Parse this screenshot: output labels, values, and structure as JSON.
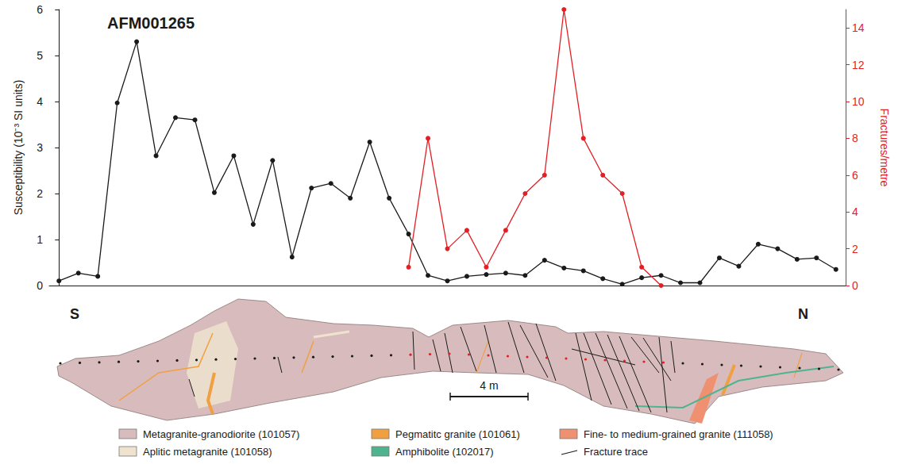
{
  "chart_data": {
    "type": "line",
    "title": "AFM001265",
    "y_label": "Susceptibility (10⁻³ SI units)",
    "y2_label": "Fractures/metre",
    "x": [
      0,
      1,
      2,
      3,
      4,
      5,
      6,
      7,
      8,
      9,
      10,
      11,
      12,
      13,
      14,
      15,
      16,
      17,
      18,
      19,
      20,
      21,
      22,
      23,
      24,
      25,
      26,
      27,
      28,
      29,
      30,
      31,
      32,
      33,
      34,
      35,
      36,
      37,
      38,
      39,
      40
    ],
    "xlim": [
      -0.5,
      40.5
    ],
    "ylim": [
      0,
      6
    ],
    "yticks": [
      0,
      1,
      2,
      3,
      4,
      5,
      6
    ],
    "y2lim": [
      0,
      15
    ],
    "y2ticks": [
      0,
      2,
      4,
      6,
      8,
      10,
      12,
      14
    ],
    "grid": false,
    "tick_labels": "y",
    "marker": "circle",
    "series": [
      {
        "color": "#1a1a1a",
        "values": [
          0.1,
          0.27,
          0.2,
          3.97,
          5.3,
          2.82,
          3.65,
          3.6,
          2.02,
          2.82,
          1.33,
          2.72,
          0.62,
          2.12,
          2.22,
          1.9,
          3.12,
          1.9,
          1.12,
          0.22,
          0.1,
          0.2,
          0.24,
          0.27,
          0.22,
          0.55,
          0.38,
          0.32,
          0.15,
          0.03,
          0.17,
          0.22,
          0.06,
          0.06,
          0.6,
          0.42,
          0.9,
          0.8,
          0.57,
          0.6,
          0.35
        ]
      },
      {
        "color": "#e31e24",
        "axis": "y2",
        "values": [
          null,
          null,
          null,
          null,
          null,
          null,
          null,
          null,
          null,
          null,
          null,
          null,
          null,
          null,
          null,
          null,
          null,
          null,
          1,
          8,
          2,
          3,
          1,
          3,
          5,
          6,
          15,
          8,
          6,
          5,
          1,
          0,
          null,
          null,
          null,
          null,
          null,
          null,
          null,
          null,
          null
        ]
      }
    ]
  },
  "outcrop": {
    "south": "S",
    "north": "N",
    "scale_bar": "4 m",
    "legend": [
      {
        "label": "Metagranite-granodiorite (101057)",
        "color": "#d8bcbd"
      },
      {
        "label": "Pegmatitc granite (101061)",
        "color": "#f0a040"
      },
      {
        "label": "Fine- to medium-grained granite (111058)",
        "color": "#ef9170"
      },
      {
        "label": "Aplitic metagranite (101058)",
        "color": "#efe3cf"
      },
      {
        "label": "Amphibolite (102017)",
        "color": "#4fb38f"
      },
      {
        "label": "Fracture trace",
        "color": "#1a1a1a",
        "line_style": "solid"
      }
    ]
  }
}
